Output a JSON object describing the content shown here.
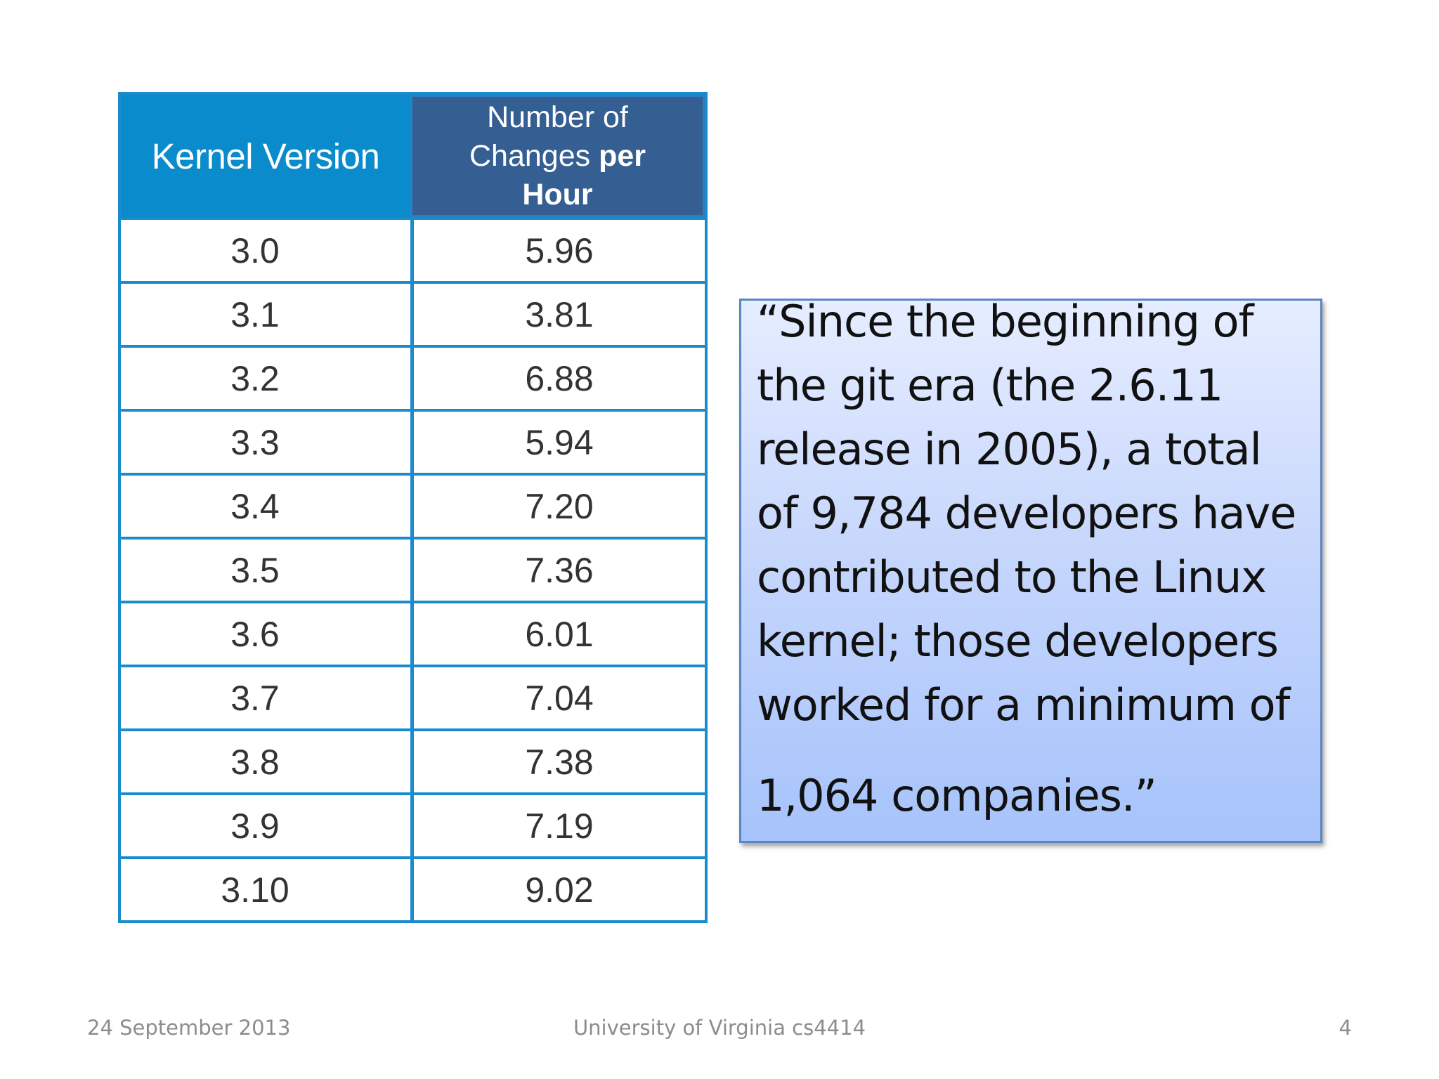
{
  "table": {
    "headers": {
      "version": "Kernel Version",
      "changes_line1": "Number of",
      "changes_line2": "Changes",
      "changes_line2_bold": "per",
      "changes_line3": "Hour"
    },
    "rows": [
      {
        "version": "3.0",
        "changes": "5.96"
      },
      {
        "version": "3.1",
        "changes": "3.81"
      },
      {
        "version": "3.2",
        "changes": "6.88"
      },
      {
        "version": "3.3",
        "changes": "5.94"
      },
      {
        "version": "3.4",
        "changes": "7.20"
      },
      {
        "version": "3.5",
        "changes": "7.36"
      },
      {
        "version": "3.6",
        "changes": "6.01"
      },
      {
        "version": "3.7",
        "changes": "7.04"
      },
      {
        "version": "3.8",
        "changes": "7.38"
      },
      {
        "version": "3.9",
        "changes": "7.19"
      },
      {
        "version": "3.10",
        "changes": "9.02"
      }
    ]
  },
  "quote": {
    "lines": [
      "“Since the beginning of",
      "the git era (the 2.6.11",
      "release in 2005), a total",
      "of 9,784 developers have",
      "contributed to the Linux",
      "kernel; those developers",
      "worked for a minimum of",
      "1,064 companies.”"
    ]
  },
  "footer": {
    "date": "24 September 2013",
    "center": "University of Virginia cs4414",
    "page": "4"
  },
  "colors": {
    "table_border": "#1a8ccc",
    "header_version_bg": "#0a8bcb",
    "header_changes_bg": "#355e92",
    "quote_border": "#5b86c4"
  }
}
